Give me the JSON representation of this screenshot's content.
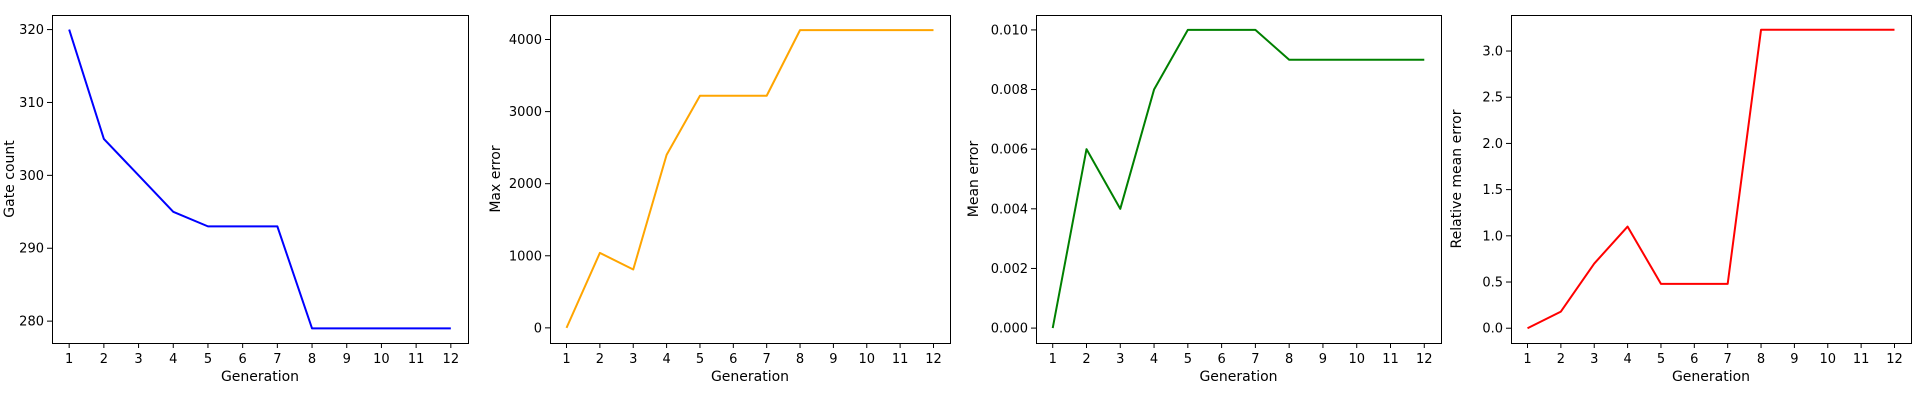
{
  "chart_data": [
    {
      "type": "line",
      "xlabel": "Generation",
      "ylabel": "Gate count",
      "x": [
        1,
        2,
        3,
        4,
        5,
        6,
        7,
        8,
        9,
        10,
        11,
        12
      ],
      "y": [
        320,
        305,
        300,
        295,
        293,
        293,
        293,
        279,
        279,
        279,
        279,
        279
      ],
      "xticks": [
        1,
        2,
        3,
        4,
        5,
        6,
        7,
        8,
        9,
        10,
        11,
        12
      ],
      "yticks": [
        280,
        290,
        300,
        310,
        320
      ],
      "ytick_labels": [
        "280",
        "290",
        "300",
        "310",
        "320"
      ],
      "ylim": [
        277,
        322
      ],
      "color": "#0000ff",
      "grid": false
    },
    {
      "type": "line",
      "xlabel": "Generation",
      "ylabel": "Max error",
      "x": [
        1,
        2,
        3,
        4,
        5,
        6,
        7,
        8,
        9,
        10,
        11,
        12
      ],
      "y": [
        0,
        1040,
        810,
        2400,
        3220,
        3220,
        3220,
        4130,
        4130,
        4130,
        4130,
        4130
      ],
      "xticks": [
        1,
        2,
        3,
        4,
        5,
        6,
        7,
        8,
        9,
        10,
        11,
        12
      ],
      "yticks": [
        0,
        1000,
        2000,
        3000,
        4000
      ],
      "ytick_labels": [
        "0",
        "1000",
        "2000",
        "3000",
        "4000"
      ],
      "ylim": [
        -210,
        4340
      ],
      "color": "#ffa500",
      "grid": false
    },
    {
      "type": "line",
      "xlabel": "Generation",
      "ylabel": "Mean error",
      "x": [
        1,
        2,
        3,
        4,
        5,
        6,
        7,
        8,
        9,
        10,
        11,
        12
      ],
      "y": [
        0,
        0.006,
        0.004,
        0.008,
        0.01,
        0.01,
        0.01,
        0.009,
        0.009,
        0.009,
        0.009,
        0.009
      ],
      "xticks": [
        1,
        2,
        3,
        4,
        5,
        6,
        7,
        8,
        9,
        10,
        11,
        12
      ],
      "yticks": [
        0,
        0.002,
        0.004,
        0.006,
        0.008,
        0.01
      ],
      "ytick_labels": [
        "0.000",
        "0.002",
        "0.004",
        "0.006",
        "0.008",
        "0.010"
      ],
      "ylim": [
        -0.0005,
        0.0105
      ],
      "color": "#008000",
      "grid": false
    },
    {
      "type": "line",
      "xlabel": "Generation",
      "ylabel": "Relative mean error",
      "x": [
        1,
        2,
        3,
        4,
        5,
        6,
        7,
        8,
        9,
        10,
        11,
        12
      ],
      "y": [
        0,
        0.18,
        0.7,
        1.1,
        0.48,
        0.48,
        0.48,
        3.23,
        3.23,
        3.23,
        3.23,
        3.23
      ],
      "xticks": [
        1,
        2,
        3,
        4,
        5,
        6,
        7,
        8,
        9,
        10,
        11,
        12
      ],
      "yticks": [
        0,
        0.5,
        1,
        1.5,
        2,
        2.5,
        3
      ],
      "ytick_labels": [
        "0.0",
        "0.5",
        "1.0",
        "1.5",
        "2.0",
        "2.5",
        "3.0"
      ],
      "ylim": [
        -0.16,
        3.39
      ],
      "color": "#ff0000",
      "grid": false
    }
  ]
}
